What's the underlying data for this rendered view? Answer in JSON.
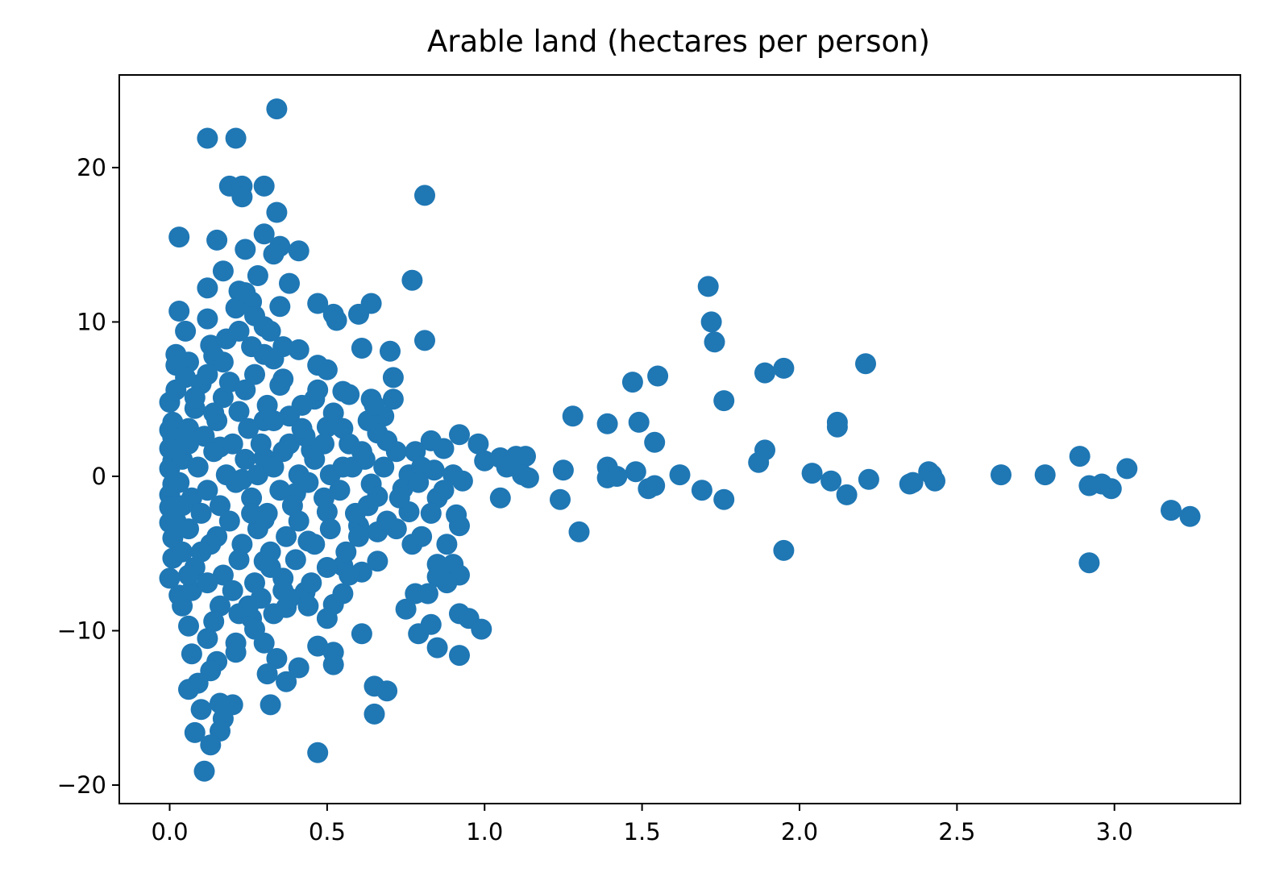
{
  "chart_data": {
    "type": "scatter",
    "title": "Arable land (hectares per person)",
    "xlabel": "",
    "ylabel": "",
    "xlim": [
      -0.16,
      3.4
    ],
    "ylim": [
      -21.2,
      26
    ],
    "xticks": [
      0.0,
      0.5,
      1.0,
      1.5,
      2.0,
      2.5,
      3.0
    ],
    "xtick_labels": [
      "0.0",
      "0.5",
      "1.0",
      "1.5",
      "2.0",
      "2.5",
      "3.0"
    ],
    "yticks": [
      -20,
      -10,
      0,
      10,
      20
    ],
    "ytick_labels": [
      "−20",
      "−10",
      "0",
      "10",
      "20"
    ],
    "grid": false,
    "legend": "none",
    "marker_color": "#1f77b4",
    "points": [
      [
        0.34,
        23.8
      ],
      [
        0.12,
        21.9
      ],
      [
        0.21,
        21.9
      ],
      [
        0.81,
        18.2
      ],
      [
        0.19,
        18.8
      ],
      [
        0.23,
        18.8
      ],
      [
        0.3,
        18.8
      ],
      [
        0.23,
        18.1
      ],
      [
        0.34,
        17.1
      ],
      [
        0.03,
        15.5
      ],
      [
        0.3,
        15.7
      ],
      [
        0.15,
        15.3
      ],
      [
        0.24,
        14.7
      ],
      [
        0.35,
        14.9
      ],
      [
        0.41,
        14.6
      ],
      [
        0.33,
        14.4
      ],
      [
        0.17,
        13.3
      ],
      [
        0.28,
        13.0
      ],
      [
        0.77,
        12.7
      ],
      [
        0.12,
        12.2
      ],
      [
        0.38,
        12.5
      ],
      [
        0.22,
        12.0
      ],
      [
        0.26,
        11.3
      ],
      [
        0.47,
        11.2
      ],
      [
        0.64,
        11.2
      ],
      [
        0.35,
        11.0
      ],
      [
        0.03,
        10.7
      ],
      [
        0.12,
        10.2
      ],
      [
        0.52,
        10.5
      ],
      [
        0.6,
        10.5
      ],
      [
        0.53,
        10.1
      ],
      [
        0.3,
        9.7
      ],
      [
        0.05,
        9.4
      ],
      [
        0.81,
        8.8
      ],
      [
        0.13,
        8.5
      ],
      [
        0.41,
        8.2
      ],
      [
        0.61,
        8.3
      ],
      [
        0.7,
        8.1
      ],
      [
        0.02,
        7.9
      ],
      [
        0.14,
        7.8
      ],
      [
        0.33,
        7.6
      ],
      [
        0.06,
        7.4
      ],
      [
        0.02,
        7.2
      ],
      [
        0.47,
        7.2
      ],
      [
        0.5,
        6.9
      ],
      [
        0.71,
        6.4
      ],
      [
        0.36,
        6.3
      ],
      [
        0.1,
        6.0
      ],
      [
        0.55,
        5.5
      ],
      [
        0.0,
        4.8
      ],
      [
        0.46,
        5.0
      ],
      [
        0.57,
        5.3
      ],
      [
        0.64,
        5.0
      ],
      [
        0.71,
        5.0
      ],
      [
        0.22,
        4.2
      ],
      [
        0.68,
        3.9
      ],
      [
        0.01,
        3.5
      ],
      [
        0.3,
        3.6
      ],
      [
        0.5,
        3.2
      ],
      [
        0.0,
        3.0
      ],
      [
        0.66,
        2.8
      ],
      [
        0.92,
        2.7
      ],
      [
        0.01,
        2.5
      ],
      [
        0.83,
        2.3
      ],
      [
        0.69,
        2.3
      ],
      [
        0.98,
        2.1
      ],
      [
        0.0,
        1.8
      ],
      [
        0.16,
        1.9
      ],
      [
        0.45,
        1.7
      ],
      [
        0.78,
        1.6
      ],
      [
        0.87,
        1.8
      ],
      [
        0.01,
        1.0
      ],
      [
        0.3,
        1.2
      ],
      [
        1.0,
        1.0
      ],
      [
        1.05,
        1.2
      ],
      [
        1.1,
        1.3
      ],
      [
        1.13,
        1.3
      ],
      [
        0.0,
        0.5
      ],
      [
        0.55,
        0.6
      ],
      [
        0.84,
        0.4
      ],
      [
        1.07,
        0.6
      ],
      [
        1.12,
        0.1
      ],
      [
        0.01,
        -0.5
      ],
      [
        0.23,
        -0.2
      ],
      [
        0.64,
        -0.5
      ],
      [
        0.74,
        -0.8
      ],
      [
        0.93,
        -0.3
      ],
      [
        0.9,
        0.1
      ],
      [
        1.14,
        -0.1
      ],
      [
        0.0,
        -1.2
      ],
      [
        0.4,
        -1.1
      ],
      [
        0.66,
        -1.3
      ],
      [
        0.85,
        -1.4
      ],
      [
        1.05,
        -1.4
      ],
      [
        0.0,
        -2.0
      ],
      [
        0.5,
        -2.3
      ],
      [
        0.76,
        -2.3
      ],
      [
        0.91,
        -2.5
      ],
      [
        0.0,
        -3.0
      ],
      [
        0.3,
        -2.8
      ],
      [
        0.6,
        -3.2
      ],
      [
        0.92,
        -3.2
      ],
      [
        0.01,
        -4.0
      ],
      [
        0.44,
        -4.2
      ],
      [
        0.66,
        -3.6
      ],
      [
        0.77,
        -4.4
      ],
      [
        0.88,
        -4.4
      ],
      [
        0.01,
        -5.3
      ],
      [
        0.3,
        -5.5
      ],
      [
        0.55,
        -5.8
      ],
      [
        0.66,
        -5.5
      ],
      [
        0.85,
        -5.7
      ],
      [
        0.9,
        -5.7
      ],
      [
        0.0,
        -6.6
      ],
      [
        0.36,
        -6.6
      ],
      [
        0.61,
        -6.2
      ],
      [
        0.85,
        -6.5
      ],
      [
        0.92,
        -6.4
      ],
      [
        0.03,
        -7.7
      ],
      [
        0.43,
        -7.5
      ],
      [
        0.55,
        -7.6
      ],
      [
        0.78,
        -7.6
      ],
      [
        0.82,
        -7.6
      ],
      [
        0.88,
        -6.9
      ],
      [
        0.04,
        -8.4
      ],
      [
        0.22,
        -8.9
      ],
      [
        0.37,
        -8.5
      ],
      [
        0.52,
        -8.3
      ],
      [
        0.75,
        -8.6
      ],
      [
        0.06,
        -9.7
      ],
      [
        0.26,
        -9.2
      ],
      [
        0.5,
        -9.2
      ],
      [
        0.83,
        -9.6
      ],
      [
        0.92,
        -8.9
      ],
      [
        0.95,
        -9.2
      ],
      [
        0.99,
        -9.9
      ],
      [
        0.79,
        -10.2
      ],
      [
        0.12,
        -10.5
      ],
      [
        0.21,
        -10.8
      ],
      [
        0.3,
        -10.8
      ],
      [
        0.47,
        -11.0
      ],
      [
        0.52,
        -11.4
      ],
      [
        0.61,
        -10.2
      ],
      [
        0.85,
        -11.1
      ],
      [
        0.92,
        -11.6
      ],
      [
        0.07,
        -11.5
      ],
      [
        0.15,
        -12.0
      ],
      [
        0.21,
        -11.4
      ],
      [
        0.34,
        -11.8
      ],
      [
        0.13,
        -12.6
      ],
      [
        0.31,
        -12.8
      ],
      [
        0.41,
        -12.4
      ],
      [
        0.52,
        -12.2
      ],
      [
        0.09,
        -13.4
      ],
      [
        0.37,
        -13.3
      ],
      [
        0.06,
        -13.8
      ],
      [
        0.65,
        -13.6
      ],
      [
        0.69,
        -13.9
      ],
      [
        0.16,
        -14.7
      ],
      [
        0.2,
        -14.8
      ],
      [
        0.32,
        -14.8
      ],
      [
        0.1,
        -15.1
      ],
      [
        0.17,
        -15.7
      ],
      [
        0.65,
        -15.4
      ],
      [
        0.08,
        -16.6
      ],
      [
        0.16,
        -16.5
      ],
      [
        0.13,
        -17.4
      ],
      [
        0.47,
        -17.9
      ],
      [
        0.11,
        -19.1
      ],
      [
        0.02,
        5.6
      ],
      [
        0.05,
        6.4
      ],
      [
        0.08,
        4.4
      ],
      [
        0.12,
        6.6
      ],
      [
        0.17,
        5.1
      ],
      [
        0.19,
        6.1
      ],
      [
        0.24,
        5.6
      ],
      [
        0.27,
        6.6
      ],
      [
        0.31,
        4.6
      ],
      [
        0.35,
        5.9
      ],
      [
        0.38,
        3.9
      ],
      [
        0.42,
        4.6
      ],
      [
        0.47,
        5.6
      ],
      [
        0.52,
        4.1
      ],
      [
        0.06,
        3.1
      ],
      [
        0.11,
        2.6
      ],
      [
        0.15,
        3.6
      ],
      [
        0.2,
        2.1
      ],
      [
        0.25,
        3.1
      ],
      [
        0.29,
        2.1
      ],
      [
        0.33,
        3.6
      ],
      [
        0.38,
        2.1
      ],
      [
        0.43,
        2.6
      ],
      [
        0.49,
        2.1
      ],
      [
        0.55,
        3.1
      ],
      [
        0.61,
        1.6
      ],
      [
        0.04,
        1.1
      ],
      [
        0.09,
        0.6
      ],
      [
        0.14,
        1.6
      ],
      [
        0.18,
        0.1
      ],
      [
        0.24,
        1.1
      ],
      [
        0.28,
        0.1
      ],
      [
        0.33,
        0.6
      ],
      [
        0.36,
        1.6
      ],
      [
        0.41,
        0.1
      ],
      [
        0.46,
        1.1
      ],
      [
        0.51,
        0.1
      ],
      [
        0.58,
        0.6
      ],
      [
        0.62,
        1.1
      ],
      [
        0.68,
        0.6
      ],
      [
        0.72,
        1.6
      ],
      [
        0.76,
        0.1
      ],
      [
        0.8,
        0.6
      ],
      [
        0.03,
        -0.4
      ],
      [
        0.07,
        -1.4
      ],
      [
        0.12,
        -0.9
      ],
      [
        0.16,
        -1.9
      ],
      [
        0.21,
        -0.4
      ],
      [
        0.26,
        -1.4
      ],
      [
        0.31,
        -2.4
      ],
      [
        0.35,
        -0.9
      ],
      [
        0.39,
        -1.9
      ],
      [
        0.44,
        -0.4
      ],
      [
        0.49,
        -1.4
      ],
      [
        0.54,
        -0.9
      ],
      [
        0.59,
        -2.4
      ],
      [
        0.63,
        -1.9
      ],
      [
        0.69,
        -2.9
      ],
      [
        0.73,
        -1.4
      ],
      [
        0.79,
        -0.4
      ],
      [
        0.83,
        -2.4
      ],
      [
        0.87,
        -0.9
      ],
      [
        0.02,
        -2.9
      ],
      [
        0.06,
        -3.4
      ],
      [
        0.1,
        -2.4
      ],
      [
        0.15,
        -3.9
      ],
      [
        0.19,
        -2.9
      ],
      [
        0.23,
        -4.4
      ],
      [
        0.28,
        -3.4
      ],
      [
        0.32,
        -4.9
      ],
      [
        0.37,
        -3.9
      ],
      [
        0.41,
        -2.9
      ],
      [
        0.46,
        -4.4
      ],
      [
        0.51,
        -3.4
      ],
      [
        0.56,
        -4.9
      ],
      [
        0.6,
        -3.9
      ],
      [
        0.72,
        -3.4
      ],
      [
        0.8,
        -3.9
      ],
      [
        0.04,
        -4.9
      ],
      [
        0.08,
        -5.9
      ],
      [
        0.13,
        -4.4
      ],
      [
        0.17,
        -6.4
      ],
      [
        0.22,
        -5.4
      ],
      [
        0.27,
        -6.9
      ],
      [
        0.32,
        -5.9
      ],
      [
        0.36,
        -7.4
      ],
      [
        0.4,
        -5.4
      ],
      [
        0.45,
        -6.9
      ],
      [
        0.5,
        -5.9
      ],
      [
        0.57,
        -6.4
      ],
      [
        0.07,
        -7.4
      ],
      [
        0.12,
        -6.9
      ],
      [
        0.16,
        -8.4
      ],
      [
        0.2,
        -7.4
      ],
      [
        0.25,
        -8.4
      ],
      [
        0.29,
        -7.9
      ],
      [
        0.33,
        -8.9
      ],
      [
        0.38,
        -7.9
      ],
      [
        0.44,
        -8.4
      ],
      [
        0.14,
        -9.4
      ],
      [
        0.27,
        -9.9
      ],
      [
        0.18,
        8.9
      ],
      [
        0.22,
        9.4
      ],
      [
        0.26,
        8.4
      ],
      [
        0.3,
        7.9
      ],
      [
        0.27,
        10.4
      ],
      [
        0.21,
        10.9
      ],
      [
        0.24,
        11.9
      ],
      [
        0.17,
        7.4
      ],
      [
        0.36,
        8.4
      ],
      [
        0.32,
        9.4
      ],
      [
        0.08,
        5.1
      ],
      [
        0.14,
        4.1
      ],
      [
        0.06,
        2.1
      ],
      [
        0.04,
        -1.9
      ],
      [
        0.1,
        -4.9
      ],
      [
        0.06,
        -6.4
      ],
      [
        0.26,
        -2.4
      ],
      [
        0.42,
        3.1
      ],
      [
        0.57,
        2.1
      ],
      [
        0.63,
        3.6
      ],
      [
        0.65,
        4.6
      ],
      [
        1.71,
        12.3
      ],
      [
        1.72,
        10.0
      ],
      [
        1.73,
        8.7
      ],
      [
        2.21,
        7.3
      ],
      [
        1.95,
        7.0
      ],
      [
        1.89,
        6.7
      ],
      [
        1.55,
        6.5
      ],
      [
        1.47,
        6.1
      ],
      [
        1.76,
        4.9
      ],
      [
        1.28,
        3.9
      ],
      [
        1.39,
        3.4
      ],
      [
        1.49,
        3.5
      ],
      [
        2.12,
        3.5
      ],
      [
        2.12,
        3.2
      ],
      [
        1.54,
        2.2
      ],
      [
        1.89,
        1.7
      ],
      [
        1.87,
        0.9
      ],
      [
        2.89,
        1.3
      ],
      [
        1.39,
        0.6
      ],
      [
        1.48,
        0.3
      ],
      [
        1.25,
        0.4
      ],
      [
        1.62,
        0.1
      ],
      [
        2.04,
        0.2
      ],
      [
        2.64,
        0.1
      ],
      [
        2.78,
        0.1
      ],
      [
        3.04,
        0.5
      ],
      [
        2.41,
        0.3
      ],
      [
        2.42,
        0.1
      ],
      [
        1.39,
        -0.1
      ],
      [
        1.42,
        0.0
      ],
      [
        2.1,
        -0.3
      ],
      [
        2.22,
        -0.2
      ],
      [
        2.35,
        -0.5
      ],
      [
        2.36,
        -0.4
      ],
      [
        2.43,
        -0.3
      ],
      [
        1.52,
        -0.8
      ],
      [
        1.54,
        -0.6
      ],
      [
        1.69,
        -0.9
      ],
      [
        2.15,
        -1.2
      ],
      [
        2.92,
        -0.6
      ],
      [
        2.96,
        -0.5
      ],
      [
        2.99,
        -0.8
      ],
      [
        1.24,
        -1.5
      ],
      [
        1.76,
        -1.5
      ],
      [
        3.18,
        -2.2
      ],
      [
        3.24,
        -2.6
      ],
      [
        1.3,
        -3.6
      ],
      [
        1.95,
        -4.8
      ],
      [
        2.92,
        -5.6
      ]
    ]
  }
}
